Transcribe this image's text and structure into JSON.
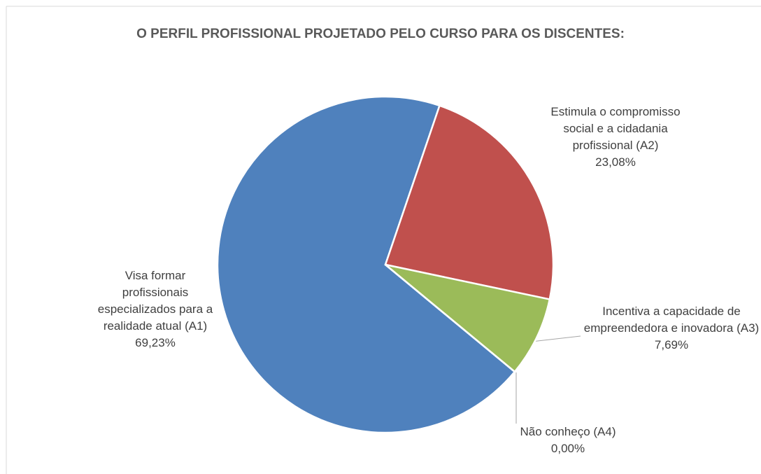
{
  "chart_data": {
    "type": "pie",
    "title": "O PERFIL PROFISSIONAL PROJETADO PELO CURSO PARA OS DISCENTES:",
    "categories": [
      "Visa formar profissionais especializados para a realidade atual (A1)",
      "Estimula o compromisso social e a cidadania profissional (A2)",
      "Incentiva a capacidade de empreendedora e inovadora (A3)",
      "Não conheço (A4)"
    ],
    "values": [
      69.23,
      23.08,
      7.69,
      0
    ],
    "value_labels": [
      "69,23%",
      "23,08%",
      "7,69%",
      "0,00%"
    ],
    "colors": [
      "#4f81bd",
      "#c0504d",
      "#9bbb59",
      "#8064a2"
    ]
  }
}
